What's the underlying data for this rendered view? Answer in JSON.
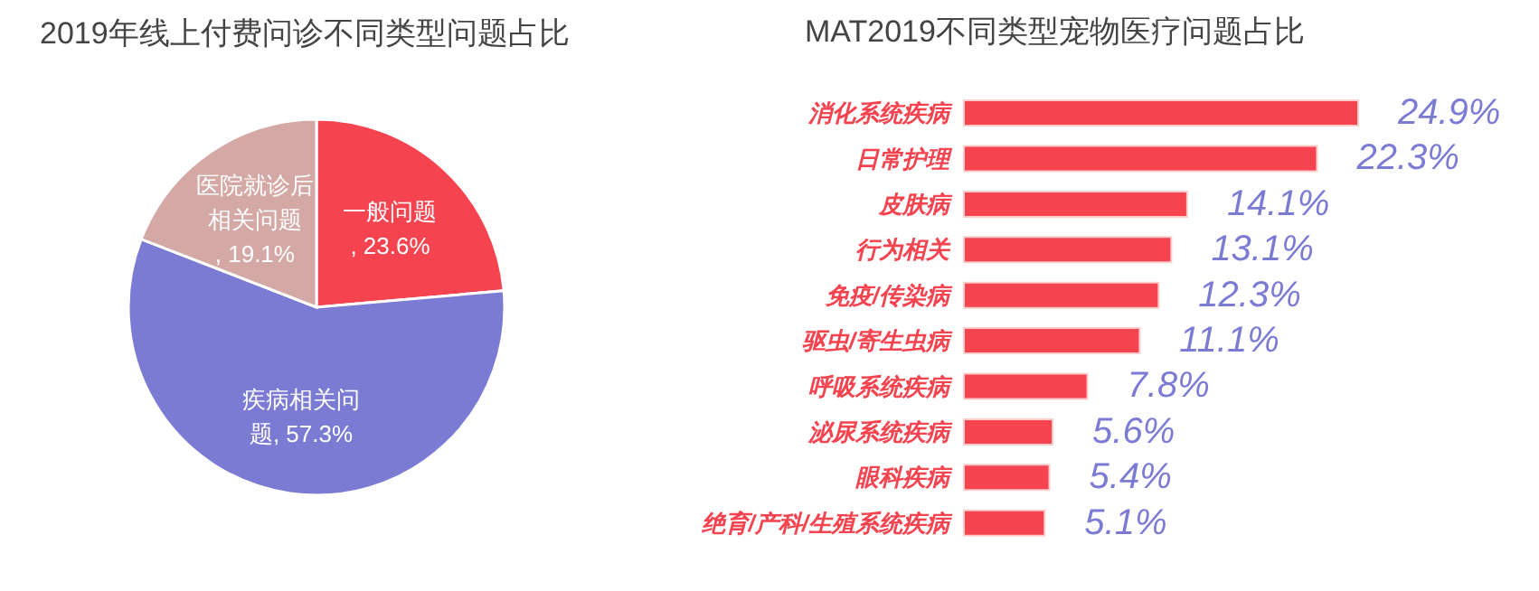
{
  "chart_data": [
    {
      "type": "pie",
      "title": "2019年线上付费问诊不同类型问题占比",
      "categories": [
        "一般问题",
        "疾病相关问题",
        "医院就诊后相关问题"
      ],
      "values": [
        23.6,
        57.3,
        19.1
      ],
      "colors": [
        "#f5434f",
        "#7b7bd4",
        "#d4a8a5"
      ],
      "value_labels": [
        ", 23.6%",
        ", 57.3%",
        ", 19.1%"
      ],
      "legend": false
    },
    {
      "type": "bar",
      "orientation": "horizontal",
      "title": "MAT2019不同类型宠物医疗问题占比",
      "categories": [
        "消化系统疾病",
        "日常护理",
        "皮肤病",
        "行为相关",
        "免疫/传染病",
        "驱虫/寄生虫病",
        "呼吸系统疾病",
        "泌尿系统疾病",
        "眼科疾病",
        "绝育/产科/生殖系统疾病"
      ],
      "values": [
        24.9,
        22.3,
        14.1,
        13.1,
        12.3,
        11.1,
        7.8,
        5.6,
        5.4,
        5.1
      ],
      "color": "#f5434f",
      "value_labels": [
        "24.9%",
        "22.3%",
        "14.1%",
        "13.1%",
        "12.3%",
        "11.1%",
        "7.8%",
        "5.6%",
        "5.4%",
        "5.1%"
      ],
      "legend": false
    }
  ]
}
